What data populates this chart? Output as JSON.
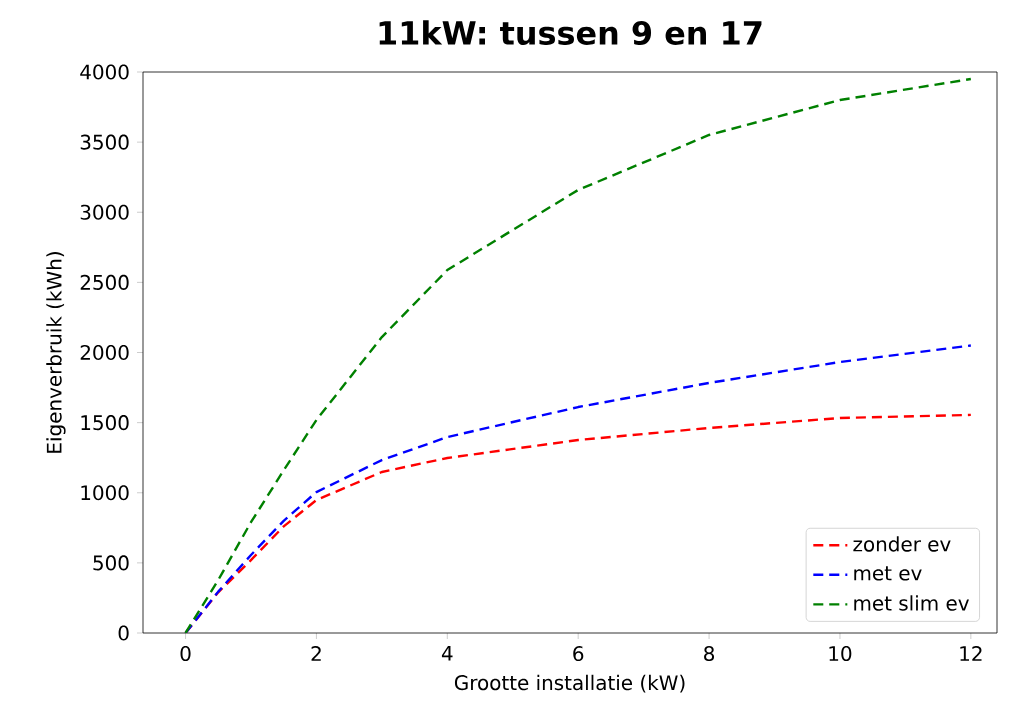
{
  "chart_data": {
    "type": "line",
    "title": "11kW: tussen 9 en 17",
    "xlabel": "Grootte installatie (kW)",
    "ylabel": "Eigenverbruik (kWh)",
    "x": [
      0,
      0.5,
      1,
      1.5,
      2,
      3,
      4,
      6,
      8,
      10,
      12
    ],
    "series": [
      {
        "name": "zonder ev",
        "color": "#ff0000",
        "values": [
          0,
          290,
          520,
          760,
          948,
          1148,
          1248,
          1376,
          1462,
          1533,
          1555
        ]
      },
      {
        "name": "met ev",
        "color": "#0000ff",
        "values": [
          0,
          295,
          556,
          800,
          1005,
          1233,
          1397,
          1611,
          1783,
          1932,
          2050
        ]
      },
      {
        "name": "met slim ev",
        "color": "#008000",
        "values": [
          0,
          378,
          790,
          1160,
          1519,
          2110,
          2588,
          3159,
          3551,
          3800,
          3950
        ]
      }
    ],
    "xlim": [
      -0.65,
      12.4
    ],
    "ylim": [
      0,
      4000
    ],
    "xticks": [
      0,
      2,
      4,
      6,
      8,
      10,
      12
    ],
    "yticks": [
      0,
      500,
      1000,
      1500,
      2000,
      2500,
      3000,
      3500,
      4000
    ],
    "grid": false,
    "legend": "bottom right",
    "line_style": "dashed",
    "marker": "none"
  }
}
